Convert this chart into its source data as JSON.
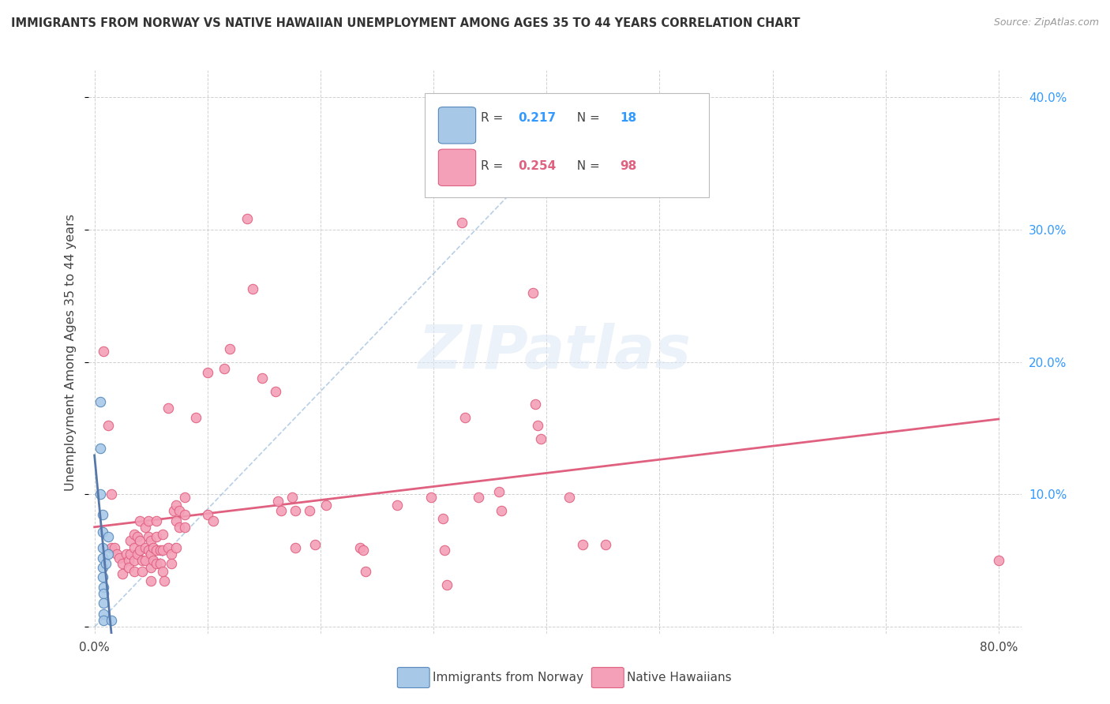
{
  "title": "IMMIGRANTS FROM NORWAY VS NATIVE HAWAIIAN UNEMPLOYMENT AMONG AGES 35 TO 44 YEARS CORRELATION CHART",
  "source": "Source: ZipAtlas.com",
  "ylabel": "Unemployment Among Ages 35 to 44 years",
  "xlim": [
    -0.005,
    0.82
  ],
  "ylim": [
    -0.005,
    0.42
  ],
  "xticks": [
    0.0,
    0.1,
    0.2,
    0.3,
    0.4,
    0.5,
    0.6,
    0.7,
    0.8
  ],
  "yticks": [
    0.0,
    0.1,
    0.2,
    0.3,
    0.4
  ],
  "norway_color": "#a8c8e8",
  "hawaii_color": "#f4a0b8",
  "norway_edge_color": "#5588bb",
  "hawaii_edge_color": "#e06080",
  "norway_trend_color": "#5577aa",
  "hawaii_trend_color": "#e06080",
  "norway_dashed_color": "#99bbdd",
  "norway_scatter": [
    [
      0.005,
      0.17
    ],
    [
      0.005,
      0.135
    ],
    [
      0.005,
      0.1
    ],
    [
      0.007,
      0.085
    ],
    [
      0.007,
      0.072
    ],
    [
      0.007,
      0.06
    ],
    [
      0.007,
      0.052
    ],
    [
      0.007,
      0.045
    ],
    [
      0.007,
      0.038
    ],
    [
      0.008,
      0.03
    ],
    [
      0.008,
      0.025
    ],
    [
      0.008,
      0.018
    ],
    [
      0.008,
      0.01
    ],
    [
      0.008,
      0.005
    ],
    [
      0.01,
      0.048
    ],
    [
      0.012,
      0.068
    ],
    [
      0.012,
      0.055
    ],
    [
      0.015,
      0.005
    ]
  ],
  "hawaii_scatter": [
    [
      0.008,
      0.208
    ],
    [
      0.012,
      0.152
    ],
    [
      0.015,
      0.1
    ],
    [
      0.015,
      0.06
    ],
    [
      0.018,
      0.06
    ],
    [
      0.02,
      0.055
    ],
    [
      0.022,
      0.052
    ],
    [
      0.025,
      0.048
    ],
    [
      0.025,
      0.04
    ],
    [
      0.028,
      0.055
    ],
    [
      0.03,
      0.05
    ],
    [
      0.03,
      0.045
    ],
    [
      0.032,
      0.065
    ],
    [
      0.032,
      0.055
    ],
    [
      0.035,
      0.07
    ],
    [
      0.035,
      0.06
    ],
    [
      0.035,
      0.05
    ],
    [
      0.035,
      0.042
    ],
    [
      0.038,
      0.068
    ],
    [
      0.038,
      0.055
    ],
    [
      0.04,
      0.08
    ],
    [
      0.04,
      0.065
    ],
    [
      0.04,
      0.058
    ],
    [
      0.042,
      0.05
    ],
    [
      0.042,
      0.042
    ],
    [
      0.045,
      0.075
    ],
    [
      0.045,
      0.06
    ],
    [
      0.045,
      0.05
    ],
    [
      0.048,
      0.08
    ],
    [
      0.048,
      0.068
    ],
    [
      0.048,
      0.058
    ],
    [
      0.05,
      0.065
    ],
    [
      0.05,
      0.055
    ],
    [
      0.05,
      0.045
    ],
    [
      0.05,
      0.035
    ],
    [
      0.052,
      0.06
    ],
    [
      0.052,
      0.05
    ],
    [
      0.055,
      0.08
    ],
    [
      0.055,
      0.068
    ],
    [
      0.055,
      0.058
    ],
    [
      0.055,
      0.048
    ],
    [
      0.058,
      0.058
    ],
    [
      0.058,
      0.048
    ],
    [
      0.06,
      0.07
    ],
    [
      0.06,
      0.058
    ],
    [
      0.06,
      0.042
    ],
    [
      0.062,
      0.035
    ],
    [
      0.065,
      0.165
    ],
    [
      0.065,
      0.06
    ],
    [
      0.068,
      0.055
    ],
    [
      0.068,
      0.048
    ],
    [
      0.07,
      0.088
    ],
    [
      0.072,
      0.092
    ],
    [
      0.072,
      0.08
    ],
    [
      0.072,
      0.06
    ],
    [
      0.075,
      0.088
    ],
    [
      0.075,
      0.075
    ],
    [
      0.08,
      0.098
    ],
    [
      0.08,
      0.085
    ],
    [
      0.08,
      0.075
    ],
    [
      0.09,
      0.158
    ],
    [
      0.1,
      0.192
    ],
    [
      0.1,
      0.085
    ],
    [
      0.105,
      0.08
    ],
    [
      0.115,
      0.195
    ],
    [
      0.12,
      0.21
    ],
    [
      0.135,
      0.308
    ],
    [
      0.14,
      0.255
    ],
    [
      0.148,
      0.188
    ],
    [
      0.16,
      0.178
    ],
    [
      0.162,
      0.095
    ],
    [
      0.165,
      0.088
    ],
    [
      0.175,
      0.098
    ],
    [
      0.178,
      0.088
    ],
    [
      0.178,
      0.06
    ],
    [
      0.19,
      0.088
    ],
    [
      0.195,
      0.062
    ],
    [
      0.205,
      0.092
    ],
    [
      0.235,
      0.06
    ],
    [
      0.238,
      0.058
    ],
    [
      0.24,
      0.042
    ],
    [
      0.268,
      0.092
    ],
    [
      0.298,
      0.098
    ],
    [
      0.308,
      0.082
    ],
    [
      0.31,
      0.058
    ],
    [
      0.312,
      0.032
    ],
    [
      0.325,
      0.305
    ],
    [
      0.328,
      0.158
    ],
    [
      0.34,
      0.098
    ],
    [
      0.358,
      0.102
    ],
    [
      0.36,
      0.088
    ],
    [
      0.388,
      0.252
    ],
    [
      0.39,
      0.168
    ],
    [
      0.392,
      0.152
    ],
    [
      0.395,
      0.142
    ],
    [
      0.42,
      0.098
    ],
    [
      0.432,
      0.062
    ],
    [
      0.452,
      0.062
    ],
    [
      0.8,
      0.05
    ]
  ]
}
